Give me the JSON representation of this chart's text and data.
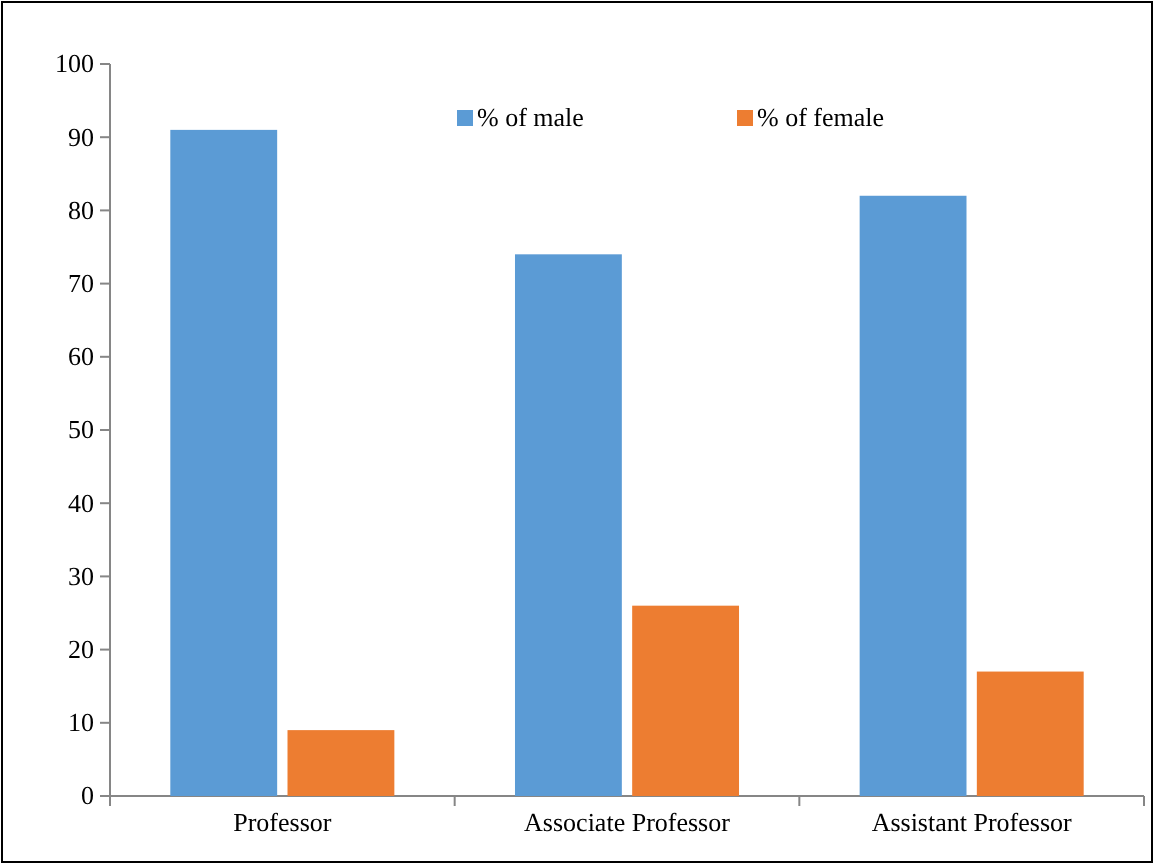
{
  "chart_data": {
    "type": "bar",
    "categories": [
      "Professor",
      "Associate Professor",
      "Assistant Professor"
    ],
    "series": [
      {
        "name": "% of male",
        "color": "#5b9bd5",
        "values": [
          91,
          74,
          82
        ]
      },
      {
        "name": "% of female",
        "color": "#ed7d31",
        "values": [
          9,
          26,
          17
        ]
      }
    ],
    "ylim": [
      0,
      100
    ],
    "yticks": [
      0,
      10,
      20,
      30,
      40,
      50,
      60,
      70,
      80,
      90,
      100
    ],
    "grid": false,
    "legend": "top"
  }
}
